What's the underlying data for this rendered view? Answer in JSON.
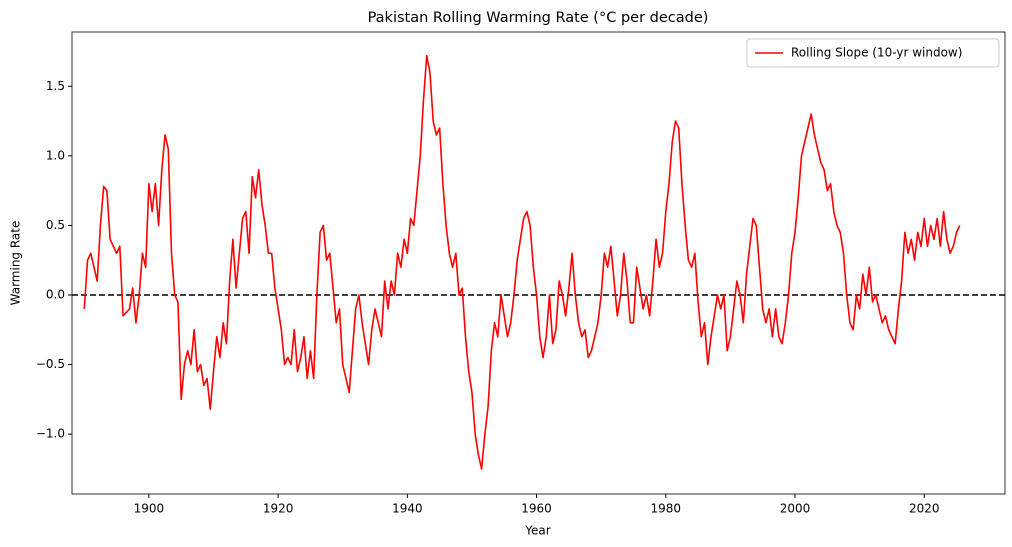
{
  "chart_data": {
    "type": "line",
    "title": "Pakistan Rolling Warming Rate (°C per decade)",
    "x_label": "Year",
    "y_label": "Warming Rate",
    "xlim": [
      1888.1,
      2032.5
    ],
    "ylim": [
      -1.43,
      1.89
    ],
    "xticks": [
      1900,
      1920,
      1940,
      1960,
      1980,
      2000,
      2020
    ],
    "yticks": [
      {
        "value": -1.0,
        "label": "−1.0"
      },
      {
        "value": -0.5,
        "label": "−0.5"
      },
      {
        "value": 0.0,
        "label": "0.0"
      },
      {
        "value": 0.5,
        "label": "0.5"
      },
      {
        "value": 1.0,
        "label": "1.0"
      },
      {
        "value": 1.5,
        "label": "1.5"
      }
    ],
    "hline": {
      "value": 0,
      "color": "#000000"
    },
    "legend": "upper right",
    "x": [
      1890,
      1890.5,
      1891,
      1892,
      1892.5,
      1893,
      1893.5,
      1894,
      1895,
      1895.5,
      1896,
      1897,
      1897.5,
      1898,
      1898.5,
      1899,
      1899.5,
      1900,
      1900.5,
      1901,
      1901.5,
      1902,
      1902.5,
      1903,
      1903.5,
      1904,
      1904.5,
      1905,
      1905.5,
      1906,
      1906.5,
      1907,
      1907.5,
      1908,
      1908.5,
      1909,
      1909.5,
      1910,
      1910.5,
      1911,
      1911.5,
      1912,
      1912.5,
      1913,
      1913.5,
      1914,
      1914.5,
      1915,
      1915.5,
      1916,
      1916.5,
      1917,
      1917.5,
      1918,
      1918.5,
      1919,
      1919.5,
      1920,
      1920.5,
      1921,
      1921.5,
      1922,
      1922.5,
      1923,
      1923.5,
      1924,
      1924.5,
      1925,
      1925.5,
      1926,
      1926.5,
      1927,
      1927.5,
      1928,
      1928.5,
      1929,
      1929.5,
      1930,
      1930.5,
      1931,
      1931.5,
      1932,
      1932.5,
      1933,
      1933.5,
      1934,
      1934.5,
      1935,
      1935.5,
      1936,
      1936.5,
      1937,
      1937.5,
      1938,
      1938.5,
      1939,
      1939.5,
      1940,
      1940.5,
      1941,
      1941.5,
      1942,
      1942.5,
      1943,
      1943.5,
      1944,
      1944.5,
      1945,
      1945.5,
      1946,
      1946.5,
      1947,
      1947.5,
      1948,
      1948.5,
      1949,
      1949.5,
      1950,
      1950.5,
      1951,
      1951.5,
      1952,
      1952.5,
      1953,
      1953.5,
      1954,
      1954.5,
      1955,
      1955.5,
      1956,
      1956.5,
      1957,
      1957.5,
      1958,
      1958.5,
      1959,
      1959.5,
      1960,
      1960.5,
      1961,
      1961.5,
      1962,
      1962.5,
      1963,
      1963.5,
      1964,
      1964.5,
      1965,
      1965.5,
      1966,
      1966.5,
      1967,
      1967.5,
      1968,
      1968.5,
      1969,
      1969.5,
      1970,
      1970.5,
      1971,
      1971.5,
      1972,
      1972.5,
      1973,
      1973.5,
      1974,
      1974.5,
      1975,
      1975.5,
      1976,
      1976.5,
      1977,
      1977.5,
      1978,
      1978.5,
      1979,
      1979.5,
      1980,
      1980.5,
      1981,
      1981.5,
      1982,
      1982.5,
      1983,
      1983.5,
      1984,
      1984.5,
      1985,
      1985.5,
      1986,
      1986.5,
      1987,
      1987.5,
      1988,
      1988.5,
      1989,
      1989.5,
      1990,
      1990.5,
      1991,
      1991.5,
      1992,
      1992.5,
      1993,
      1993.5,
      1994,
      1994.5,
      1995,
      1995.5,
      1996,
      1996.5,
      1997,
      1997.5,
      1998,
      1998.5,
      1999,
      1999.5,
      2000,
      2000.5,
      2001,
      2001.5,
      2002,
      2002.5,
      2003,
      2003.5,
      2004,
      2004.5,
      2005,
      2005.5,
      2006,
      2006.5,
      2007,
      2007.5,
      2008,
      2008.5,
      2009,
      2009.5,
      2010,
      2010.5,
      2011,
      2011.5,
      2012,
      2012.5,
      2013,
      2013.5,
      2014,
      2014.5,
      2015,
      2015.5,
      2016,
      2016.5,
      2017,
      2017.5,
      2018,
      2018.5,
      2019,
      2019.5,
      2020,
      2020.5,
      2021,
      2021.5,
      2022,
      2022.5,
      2023,
      2023.5,
      2024,
      2024.5,
      2025,
      2025.5
    ],
    "series": [
      {
        "name": "Rolling Slope (10-yr window)",
        "color": "#ff0000",
        "values": [
          -0.1,
          0.25,
          0.3,
          0.1,
          0.5,
          0.78,
          0.75,
          0.4,
          0.3,
          0.35,
          -0.15,
          -0.1,
          0.05,
          -0.2,
          0.0,
          0.3,
          0.2,
          0.8,
          0.6,
          0.8,
          0.5,
          0.9,
          1.15,
          1.05,
          0.3,
          0.0,
          -0.05,
          -0.75,
          -0.5,
          -0.4,
          -0.5,
          -0.25,
          -0.55,
          -0.5,
          -0.65,
          -0.6,
          -0.82,
          -0.55,
          -0.3,
          -0.45,
          -0.2,
          -0.35,
          0.1,
          0.4,
          0.05,
          0.3,
          0.55,
          0.6,
          0.3,
          0.85,
          0.7,
          0.9,
          0.65,
          0.5,
          0.3,
          0.3,
          0.05,
          -0.1,
          -0.25,
          -0.5,
          -0.45,
          -0.5,
          -0.25,
          -0.55,
          -0.45,
          -0.3,
          -0.6,
          -0.4,
          -0.6,
          0.0,
          0.45,
          0.5,
          0.25,
          0.3,
          0.05,
          -0.2,
          -0.1,
          -0.5,
          -0.6,
          -0.7,
          -0.4,
          -0.1,
          0.0,
          -0.2,
          -0.35,
          -0.5,
          -0.25,
          -0.1,
          -0.2,
          -0.3,
          0.1,
          -0.1,
          0.1,
          0.0,
          0.3,
          0.2,
          0.4,
          0.3,
          0.55,
          0.5,
          0.75,
          1.0,
          1.4,
          1.72,
          1.6,
          1.25,
          1.15,
          1.2,
          0.8,
          0.5,
          0.3,
          0.2,
          0.3,
          0.0,
          0.05,
          -0.3,
          -0.55,
          -0.7,
          -1.0,
          -1.15,
          -1.25,
          -1.0,
          -0.8,
          -0.4,
          -0.2,
          -0.3,
          0.0,
          -0.15,
          -0.3,
          -0.2,
          0.0,
          0.25,
          0.4,
          0.55,
          0.6,
          0.5,
          0.2,
          0.0,
          -0.3,
          -0.45,
          -0.3,
          0.0,
          -0.35,
          -0.25,
          0.1,
          0.0,
          -0.15,
          0.05,
          0.3,
          0.0,
          -0.2,
          -0.3,
          -0.25,
          -0.45,
          -0.4,
          -0.3,
          -0.2,
          0.0,
          0.3,
          0.2,
          0.35,
          0.1,
          -0.15,
          0.0,
          0.3,
          0.1,
          -0.2,
          -0.2,
          0.2,
          0.05,
          -0.1,
          0.0,
          -0.15,
          0.1,
          0.4,
          0.2,
          0.3,
          0.6,
          0.8,
          1.1,
          1.25,
          1.2,
          0.8,
          0.5,
          0.25,
          0.2,
          0.3,
          -0.05,
          -0.3,
          -0.2,
          -0.5,
          -0.3,
          -0.15,
          0.0,
          -0.1,
          0.0,
          -0.4,
          -0.3,
          -0.1,
          0.1,
          0.0,
          -0.2,
          0.15,
          0.35,
          0.55,
          0.5,
          0.2,
          -0.1,
          -0.2,
          -0.1,
          -0.3,
          -0.1,
          -0.3,
          -0.35,
          -0.2,
          0.0,
          0.3,
          0.45,
          0.7,
          1.0,
          1.1,
          1.2,
          1.3,
          1.15,
          1.05,
          0.95,
          0.9,
          0.75,
          0.8,
          0.6,
          0.5,
          0.45,
          0.3,
          0.0,
          -0.2,
          -0.25,
          0.0,
          -0.1,
          0.15,
          0.0,
          0.2,
          -0.05,
          0.0,
          -0.1,
          -0.2,
          -0.15,
          -0.25,
          -0.3,
          -0.35,
          -0.1,
          0.1,
          0.45,
          0.3,
          0.4,
          0.25,
          0.45,
          0.35,
          0.55,
          0.35,
          0.5,
          0.4,
          0.55,
          0.35,
          0.6,
          0.4,
          0.3,
          0.35,
          0.45,
          0.5
        ]
      }
    ]
  }
}
